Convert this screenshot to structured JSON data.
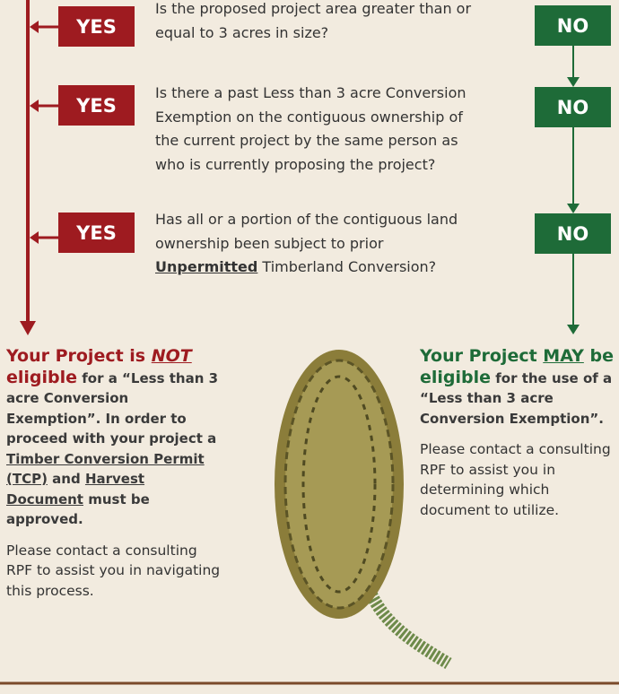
{
  "questions": [
    {
      "yes": "YES",
      "no": "NO",
      "text": [
        "Is the proposed project area greater than or equal to 3 acres in size?"
      ]
    },
    {
      "yes": "YES",
      "no": "NO",
      "text": [
        "Is there a past Less than 3 acre Conversion Exemption on the contiguous ownership of the current project by the same person as who is currently proposing the project?"
      ]
    },
    {
      "yes": "YES",
      "no": "NO",
      "text": [
        "Has all or a portion of the contiguous land ownership been subject to prior ",
        "Unpermitted",
        " Timberland Conversion?"
      ]
    }
  ],
  "not_eligible": {
    "heading": [
      "Your Project is ",
      "NOT",
      " eligible"
    ],
    "body": [
      " for a “Less than 3 acre Conversion Exemption”. In order to proceed with your project a ",
      "Timber Conversion Permit (TCP)",
      " and ",
      "Harvest Document",
      " must be approved."
    ],
    "note": "Please contact a consulting RPF to assist you in navigating this process."
  },
  "may_be_eligible": {
    "heading": [
      "Your Project ",
      "MAY",
      " be eligible"
    ],
    "body": " for the use of a “Less than 3 acre Conversion Exemption”.",
    "note": "Please contact a consulting RPF to assist you in determining which document to utilize."
  }
}
